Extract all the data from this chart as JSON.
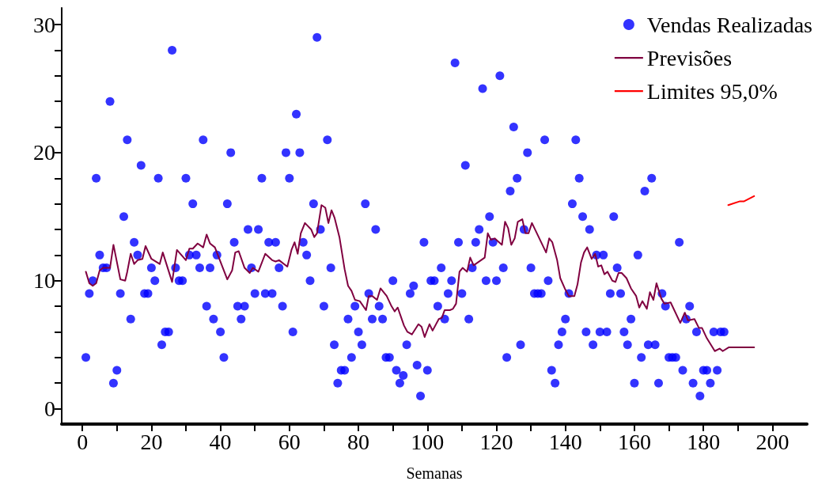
{
  "chart_data": {
    "type": "scatter",
    "xlabel": "Semanas",
    "xlim": [
      -6,
      210
    ],
    "ylim": [
      -1.2,
      31.3
    ],
    "xticks": [
      0,
      {
        "value": 10,
        "label": null
      },
      20,
      {
        "value": 30,
        "label": null
      },
      40,
      {
        "value": 50,
        "label": null
      },
      60,
      {
        "value": 70,
        "label": null
      },
      80,
      {
        "value": 90,
        "label": null
      },
      100,
      {
        "value": 110,
        "label": null
      },
      120,
      {
        "value": 130,
        "label": null
      },
      140,
      {
        "value": 150,
        "label": null
      },
      160,
      {
        "value": 170,
        "label": null
      },
      180,
      {
        "value": 190,
        "label": null
      },
      200
    ],
    "yticks": [
      0,
      {
        "value": 2,
        "label": null
      },
      {
        "value": 4,
        "label": null
      },
      {
        "value": 6,
        "label": null
      },
      {
        "value": 8,
        "label": null
      },
      10,
      {
        "value": 12,
        "label": null
      },
      {
        "value": 14,
        "label": null
      },
      {
        "value": 16,
        "label": null
      },
      {
        "value": 18,
        "label": null
      },
      20,
      {
        "value": 22,
        "label": null
      },
      {
        "value": 24,
        "label": null
      },
      {
        "value": 26,
        "label": null
      },
      {
        "value": 28,
        "label": null
      },
      30
    ],
    "legend": "top right",
    "series": [
      {
        "name": "Vendas Realizadas",
        "marker": "circle",
        "color": "#0000ff",
        "x": [
          1,
          2,
          3,
          4,
          5,
          6,
          7,
          8,
          9,
          10,
          11,
          12,
          13,
          14,
          15,
          16,
          17,
          18,
          19,
          20,
          21,
          22,
          23,
          24,
          25,
          26,
          27,
          28,
          29,
          30,
          31,
          32,
          33,
          34,
          35,
          36,
          37,
          38,
          39,
          40,
          41,
          42,
          43,
          44,
          45,
          46,
          47,
          48,
          49,
          50,
          51,
          52,
          53,
          54,
          55,
          56,
          57,
          58,
          59,
          60,
          61,
          62,
          63,
          64,
          65,
          66,
          67,
          68,
          69,
          70,
          71,
          72,
          73,
          74,
          75,
          76,
          77,
          78,
          79,
          80,
          81,
          82,
          83,
          84,
          85,
          86,
          87,
          88,
          89,
          90,
          91,
          92,
          93,
          94,
          95,
          96,
          97,
          98,
          99,
          100,
          101,
          102,
          103,
          104,
          105,
          106,
          107,
          108,
          109,
          110,
          111,
          112,
          113,
          114,
          115,
          116,
          117,
          118,
          119,
          120,
          121,
          122,
          123,
          124,
          125,
          126,
          127,
          128,
          129,
          130,
          131,
          132,
          133,
          134,
          135,
          136,
          137,
          138,
          139,
          140,
          141,
          142,
          143,
          144,
          145,
          146,
          147,
          148,
          149,
          150,
          151,
          152,
          153,
          154,
          155,
          156,
          157,
          158,
          159,
          160,
          161,
          162,
          163,
          164,
          165,
          166,
          167,
          168,
          169,
          170,
          171,
          172,
          173,
          174,
          175,
          176,
          177,
          178,
          179,
          180,
          181,
          182,
          183,
          184,
          185,
          186
        ],
        "values": [
          4,
          9,
          10,
          18,
          12,
          11,
          11,
          24,
          2,
          3,
          9,
          15,
          21,
          7,
          13,
          12,
          19,
          9,
          9,
          11,
          10,
          18,
          5,
          6,
          6,
          28,
          11,
          10,
          10,
          18,
          12,
          16,
          12,
          11,
          21,
          8,
          11,
          7,
          12,
          6,
          4,
          16,
          20,
          13,
          8,
          7,
          8,
          14,
          11,
          9,
          14,
          18,
          9,
          13,
          9,
          13,
          11,
          8,
          20,
          18,
          6,
          23,
          20,
          13,
          12,
          10,
          16,
          29,
          14,
          8,
          21,
          11,
          5,
          2,
          3,
          3,
          7,
          4,
          8,
          6,
          5,
          16,
          9,
          7,
          14,
          8,
          7,
          4,
          4,
          10,
          3,
          2,
          2.6,
          5,
          9,
          9.6,
          3.4,
          1,
          13,
          3,
          10,
          10,
          8,
          11,
          7,
          9,
          10,
          27,
          13,
          9,
          19,
          7,
          11,
          13,
          14,
          25,
          10,
          15,
          13,
          10,
          26,
          11,
          4,
          17,
          22,
          18,
          5,
          14,
          20,
          11,
          9,
          9,
          9,
          21,
          10,
          3,
          2,
          5,
          6,
          7,
          9,
          16,
          21,
          18,
          15,
          6,
          14,
          5,
          12,
          6,
          12,
          6,
          9,
          15,
          11,
          9,
          6,
          5,
          7,
          2,
          12,
          4,
          17,
          5,
          18,
          5,
          2,
          9,
          8,
          4,
          4,
          4,
          13,
          3,
          7,
          8,
          2,
          6,
          1,
          3,
          3,
          2,
          6,
          3,
          6,
          6
        ]
      },
      {
        "name": "Previsões",
        "type": "line",
        "marker": "none",
        "line_style": "solid",
        "color": "#800040",
        "x": [
          1,
          2,
          3,
          4,
          5,
          6,
          8,
          9,
          11,
          12.4,
          13,
          14,
          15,
          16,
          17.4,
          18.3,
          20,
          22.4,
          23.3,
          26,
          27.4,
          30,
          31,
          32,
          33.4,
          35,
          36,
          37,
          38.4,
          42,
          43.4,
          44.3,
          45.3,
          47,
          48.5,
          49.4,
          51,
          53,
          55,
          56,
          57,
          59.4,
          60.6,
          61.5,
          62.4,
          63.3,
          64.5,
          66.3,
          67.2,
          68,
          69.3,
          70.4,
          71.3,
          72.2,
          73.1,
          74.5,
          76,
          77,
          78,
          79,
          80.4,
          82.2,
          83,
          84,
          85.4,
          86.4,
          88.2,
          89.6,
          90.5,
          91.4,
          93.2,
          94.2,
          95.5,
          97.4,
          98.3,
          99.2,
          100.6,
          101.5,
          103.3,
          104.2,
          105,
          106.5,
          107.4,
          108.3,
          109.3,
          110.2,
          111.5,
          112.4,
          113.4,
          116.6,
          117.5,
          118.4,
          119.5,
          121.6,
          122.5,
          123.4,
          124.3,
          125.3,
          126.2,
          127.5,
          128.4,
          129.3,
          130.3,
          134.4,
          135.3,
          136.2,
          137.6,
          138.5,
          139.8,
          141,
          142.6,
          143.5,
          144.5,
          145.4,
          146.3,
          147.6,
          148.6,
          149.5,
          150.4,
          151.3,
          152.2,
          153.6,
          154.5,
          155.4,
          156.3,
          157.7,
          159,
          160.5,
          161.4,
          162.3,
          163.6,
          164.5,
          165.5,
          166.4,
          167.8,
          168.7,
          170.5,
          173.3,
          174.6,
          175.5,
          177.4,
          178.7,
          179.6,
          181,
          183.3,
          184.7,
          185.6,
          187.4,
          194.7
        ],
        "values": [
          10.7,
          9.8,
          9.6,
          9.8,
          10.8,
          11,
          11,
          12.8,
          10.1,
          10,
          10.7,
          12.1,
          11.3,
          11.6,
          11.7,
          12.7,
          11.7,
          11.3,
          12.2,
          9.9,
          12.4,
          11.6,
          12.5,
          12.5,
          12.9,
          12.6,
          13.6,
          12.9,
          12.6,
          10.1,
          10.8,
          12.2,
          12.3,
          11,
          10.6,
          11,
          10.7,
          12.1,
          11.6,
          11.5,
          11.6,
          11.1,
          12.4,
          13,
          12.1,
          13.7,
          14.5,
          14,
          13.4,
          13.7,
          15.9,
          15.7,
          14.5,
          15.5,
          14.9,
          13.4,
          10.9,
          9.6,
          9.2,
          8.5,
          8.4,
          7.7,
          8.8,
          8.8,
          8.5,
          9.4,
          8.8,
          8,
          7.6,
          7.9,
          6.5,
          6,
          5.8,
          6.6,
          6.4,
          5.6,
          6.6,
          6.1,
          7,
          7.1,
          7.7,
          7.7,
          7.8,
          8.2,
          10.7,
          11,
          10.7,
          11.8,
          11.2,
          11.8,
          13.7,
          13.2,
          13.3,
          12.8,
          14.6,
          14.1,
          12.8,
          13.3,
          14.6,
          14.8,
          13.7,
          13.7,
          14.5,
          12.2,
          13.3,
          13,
          11.6,
          10.2,
          9.4,
          8.8,
          8.8,
          9.7,
          11.4,
          12.2,
          12.6,
          11.7,
          12.1,
          11.1,
          11.2,
          10.5,
          10.7,
          10,
          9.9,
          10.6,
          10.6,
          10.2,
          9.4,
          8.8,
          7.9,
          8.4,
          7.8,
          9.1,
          8.5,
          9.8,
          8.6,
          8.2,
          8.3,
          6.7,
          7.5,
          6.9,
          7,
          6.3,
          6.3,
          5.5,
          4.5,
          4.7,
          4.5,
          4.8,
          4.8
        ]
      },
      {
        "name": "Limites 95,0%",
        "type": "line",
        "marker": "none",
        "line_style": "solid",
        "color": "#ff0000",
        "x": [
          187.2,
          190.6,
          191.8,
          194.7
        ],
        "values": [
          15.9,
          16.2,
          16.2,
          16.6
        ]
      }
    ]
  }
}
